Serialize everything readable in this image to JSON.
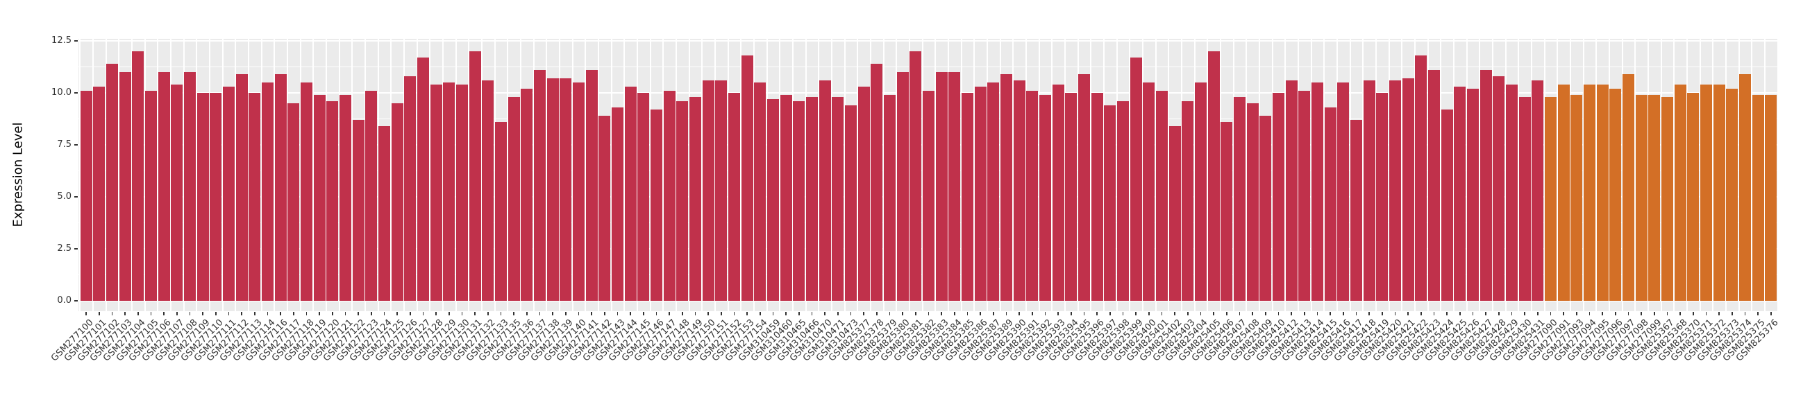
{
  "chart_data": {
    "type": "bar",
    "title": "",
    "xlabel": "",
    "ylabel": "Expression Level",
    "ylim": [
      0,
      12.6
    ],
    "yticks": [
      0,
      2.5,
      5,
      7.5,
      10,
      12.5
    ],
    "ytick_labels": [
      "0.0",
      "2.5",
      "5.0",
      "7.5",
      "10.0",
      "12.5"
    ],
    "grid": true,
    "legend_position": "none",
    "panel_background_color": "#EBEBEB",
    "gridline_color": "#FFFFFF",
    "axis_text_color": "#333333",
    "group_colors": {
      "red": "#C0314B",
      "orange": "#D36F26"
    },
    "samples": [
      {
        "id": "GSM277100",
        "value": 10.1,
        "group": "red"
      },
      {
        "id": "GSM277101",
        "value": 10.3,
        "group": "red"
      },
      {
        "id": "GSM277102",
        "value": 11.4,
        "group": "red"
      },
      {
        "id": "GSM277103",
        "value": 11.0,
        "group": "red"
      },
      {
        "id": "GSM277104",
        "value": 12.0,
        "group": "red"
      },
      {
        "id": "GSM277105",
        "value": 10.1,
        "group": "red"
      },
      {
        "id": "GSM277106",
        "value": 11.0,
        "group": "red"
      },
      {
        "id": "GSM277107",
        "value": 10.4,
        "group": "red"
      },
      {
        "id": "GSM277108",
        "value": 11.0,
        "group": "red"
      },
      {
        "id": "GSM277109",
        "value": 10.0,
        "group": "red"
      },
      {
        "id": "GSM277110",
        "value": 10.0,
        "group": "red"
      },
      {
        "id": "GSM277111",
        "value": 10.3,
        "group": "red"
      },
      {
        "id": "GSM277112",
        "value": 10.9,
        "group": "red"
      },
      {
        "id": "GSM277113",
        "value": 10.0,
        "group": "red"
      },
      {
        "id": "GSM277114",
        "value": 10.5,
        "group": "red"
      },
      {
        "id": "GSM277116",
        "value": 10.9,
        "group": "red"
      },
      {
        "id": "GSM277117",
        "value": 9.5,
        "group": "red"
      },
      {
        "id": "GSM277118",
        "value": 10.5,
        "group": "red"
      },
      {
        "id": "GSM277119",
        "value": 9.9,
        "group": "red"
      },
      {
        "id": "GSM277120",
        "value": 9.6,
        "group": "red"
      },
      {
        "id": "GSM277121",
        "value": 9.9,
        "group": "red"
      },
      {
        "id": "GSM277122",
        "value": 8.7,
        "group": "red"
      },
      {
        "id": "GSM277123",
        "value": 10.1,
        "group": "red"
      },
      {
        "id": "GSM277124",
        "value": 8.4,
        "group": "red"
      },
      {
        "id": "GSM277125",
        "value": 9.5,
        "group": "red"
      },
      {
        "id": "GSM277126",
        "value": 10.8,
        "group": "red"
      },
      {
        "id": "GSM277127",
        "value": 11.7,
        "group": "red"
      },
      {
        "id": "GSM277128",
        "value": 10.4,
        "group": "red"
      },
      {
        "id": "GSM277129",
        "value": 10.5,
        "group": "red"
      },
      {
        "id": "GSM277130",
        "value": 10.4,
        "group": "red"
      },
      {
        "id": "GSM277131",
        "value": 12.0,
        "group": "red"
      },
      {
        "id": "GSM277132",
        "value": 10.6,
        "group": "red"
      },
      {
        "id": "GSM277133",
        "value": 8.6,
        "group": "red"
      },
      {
        "id": "GSM277135",
        "value": 9.8,
        "group": "red"
      },
      {
        "id": "GSM277136",
        "value": 10.2,
        "group": "red"
      },
      {
        "id": "GSM277137",
        "value": 11.1,
        "group": "red"
      },
      {
        "id": "GSM277138",
        "value": 10.7,
        "group": "red"
      },
      {
        "id": "GSM277139",
        "value": 10.7,
        "group": "red"
      },
      {
        "id": "GSM277140",
        "value": 10.5,
        "group": "red"
      },
      {
        "id": "GSM277141",
        "value": 11.1,
        "group": "red"
      },
      {
        "id": "GSM277142",
        "value": 8.9,
        "group": "red"
      },
      {
        "id": "GSM277143",
        "value": 9.3,
        "group": "red"
      },
      {
        "id": "GSM277144",
        "value": 10.3,
        "group": "red"
      },
      {
        "id": "GSM277145",
        "value": 10.0,
        "group": "red"
      },
      {
        "id": "GSM277146",
        "value": 9.2,
        "group": "red"
      },
      {
        "id": "GSM277147",
        "value": 10.1,
        "group": "red"
      },
      {
        "id": "GSM277148",
        "value": 9.6,
        "group": "red"
      },
      {
        "id": "GSM277149",
        "value": 9.8,
        "group": "red"
      },
      {
        "id": "GSM277150",
        "value": 10.6,
        "group": "red"
      },
      {
        "id": "GSM277151",
        "value": 10.6,
        "group": "red"
      },
      {
        "id": "GSM277152",
        "value": 10.0,
        "group": "red"
      },
      {
        "id": "GSM277153",
        "value": 11.8,
        "group": "red"
      },
      {
        "id": "GSM277154",
        "value": 10.5,
        "group": "red"
      },
      {
        "id": "GSM310459",
        "value": 9.7,
        "group": "red"
      },
      {
        "id": "GSM310460",
        "value": 9.9,
        "group": "red"
      },
      {
        "id": "GSM310465",
        "value": 9.6,
        "group": "red"
      },
      {
        "id": "GSM310466",
        "value": 9.8,
        "group": "red"
      },
      {
        "id": "GSM310470",
        "value": 10.6,
        "group": "red"
      },
      {
        "id": "GSM310471",
        "value": 9.8,
        "group": "red"
      },
      {
        "id": "GSM310473",
        "value": 9.4,
        "group": "red"
      },
      {
        "id": "GSM825377",
        "value": 10.3,
        "group": "red"
      },
      {
        "id": "GSM825378",
        "value": 11.4,
        "group": "red"
      },
      {
        "id": "GSM825379",
        "value": 9.9,
        "group": "red"
      },
      {
        "id": "GSM825380",
        "value": 11.0,
        "group": "red"
      },
      {
        "id": "GSM825381",
        "value": 12.0,
        "group": "red"
      },
      {
        "id": "GSM825382",
        "value": 10.1,
        "group": "red"
      },
      {
        "id": "GSM825383",
        "value": 11.0,
        "group": "red"
      },
      {
        "id": "GSM825384",
        "value": 11.0,
        "group": "red"
      },
      {
        "id": "GSM825385",
        "value": 10.0,
        "group": "red"
      },
      {
        "id": "GSM825386",
        "value": 10.3,
        "group": "red"
      },
      {
        "id": "GSM825387",
        "value": 10.5,
        "group": "red"
      },
      {
        "id": "GSM825389",
        "value": 10.9,
        "group": "red"
      },
      {
        "id": "GSM825390",
        "value": 10.6,
        "group": "red"
      },
      {
        "id": "GSM825391",
        "value": 10.1,
        "group": "red"
      },
      {
        "id": "GSM825392",
        "value": 9.9,
        "group": "red"
      },
      {
        "id": "GSM825393",
        "value": 10.4,
        "group": "red"
      },
      {
        "id": "GSM825394",
        "value": 10.0,
        "group": "red"
      },
      {
        "id": "GSM825395",
        "value": 10.9,
        "group": "red"
      },
      {
        "id": "GSM825396",
        "value": 10.0,
        "group": "red"
      },
      {
        "id": "GSM825397",
        "value": 9.4,
        "group": "red"
      },
      {
        "id": "GSM825398",
        "value": 9.6,
        "group": "red"
      },
      {
        "id": "GSM825399",
        "value": 11.7,
        "group": "red"
      },
      {
        "id": "GSM825400",
        "value": 10.5,
        "group": "red"
      },
      {
        "id": "GSM825401",
        "value": 10.1,
        "group": "red"
      },
      {
        "id": "GSM825402",
        "value": 8.4,
        "group": "red"
      },
      {
        "id": "GSM825403",
        "value": 9.6,
        "group": "red"
      },
      {
        "id": "GSM825404",
        "value": 10.5,
        "group": "red"
      },
      {
        "id": "GSM825405",
        "value": 12.0,
        "group": "red"
      },
      {
        "id": "GSM825406",
        "value": 8.6,
        "group": "red"
      },
      {
        "id": "GSM825407",
        "value": 9.8,
        "group": "red"
      },
      {
        "id": "GSM825408",
        "value": 9.5,
        "group": "red"
      },
      {
        "id": "GSM825409",
        "value": 8.9,
        "group": "red"
      },
      {
        "id": "GSM825410",
        "value": 10.0,
        "group": "red"
      },
      {
        "id": "GSM825412",
        "value": 10.6,
        "group": "red"
      },
      {
        "id": "GSM825413",
        "value": 10.1,
        "group": "red"
      },
      {
        "id": "GSM825414",
        "value": 10.5,
        "group": "red"
      },
      {
        "id": "GSM825415",
        "value": 9.3,
        "group": "red"
      },
      {
        "id": "GSM825416",
        "value": 10.5,
        "group": "red"
      },
      {
        "id": "GSM825417",
        "value": 8.7,
        "group": "red"
      },
      {
        "id": "GSM825418",
        "value": 10.6,
        "group": "red"
      },
      {
        "id": "GSM825419",
        "value": 10.0,
        "group": "red"
      },
      {
        "id": "GSM825420",
        "value": 10.6,
        "group": "red"
      },
      {
        "id": "GSM825421",
        "value": 10.7,
        "group": "red"
      },
      {
        "id": "GSM825422",
        "value": 11.8,
        "group": "red"
      },
      {
        "id": "GSM825423",
        "value": 11.1,
        "group": "red"
      },
      {
        "id": "GSM825424",
        "value": 9.2,
        "group": "red"
      },
      {
        "id": "GSM825425",
        "value": 10.3,
        "group": "red"
      },
      {
        "id": "GSM825426",
        "value": 10.2,
        "group": "red"
      },
      {
        "id": "GSM825427",
        "value": 11.1,
        "group": "red"
      },
      {
        "id": "GSM825428",
        "value": 10.8,
        "group": "red"
      },
      {
        "id": "GSM825429",
        "value": 10.4,
        "group": "red"
      },
      {
        "id": "GSM825430",
        "value": 9.8,
        "group": "red"
      },
      {
        "id": "GSM825431",
        "value": 10.6,
        "group": "red"
      },
      {
        "id": "GSM277090",
        "value": 9.8,
        "group": "orange"
      },
      {
        "id": "GSM277091",
        "value": 10.4,
        "group": "orange"
      },
      {
        "id": "GSM277093",
        "value": 9.9,
        "group": "orange"
      },
      {
        "id": "GSM277094",
        "value": 10.4,
        "group": "orange"
      },
      {
        "id": "GSM277095",
        "value": 10.4,
        "group": "orange"
      },
      {
        "id": "GSM277096",
        "value": 10.2,
        "group": "orange"
      },
      {
        "id": "GSM277097",
        "value": 10.9,
        "group": "orange"
      },
      {
        "id": "GSM277098",
        "value": 9.9,
        "group": "orange"
      },
      {
        "id": "GSM277099",
        "value": 9.9,
        "group": "orange"
      },
      {
        "id": "GSM825367",
        "value": 9.8,
        "group": "orange"
      },
      {
        "id": "GSM825368",
        "value": 10.4,
        "group": "orange"
      },
      {
        "id": "GSM825370",
        "value": 10.0,
        "group": "orange"
      },
      {
        "id": "GSM825371",
        "value": 10.4,
        "group": "orange"
      },
      {
        "id": "GSM825372",
        "value": 10.4,
        "group": "orange"
      },
      {
        "id": "GSM825373",
        "value": 10.2,
        "group": "orange"
      },
      {
        "id": "GSM825374",
        "value": 10.9,
        "group": "orange"
      },
      {
        "id": "GSM825375",
        "value": 9.9,
        "group": "orange"
      },
      {
        "id": "GSM825376",
        "value": 9.9,
        "group": "orange"
      }
    ]
  }
}
